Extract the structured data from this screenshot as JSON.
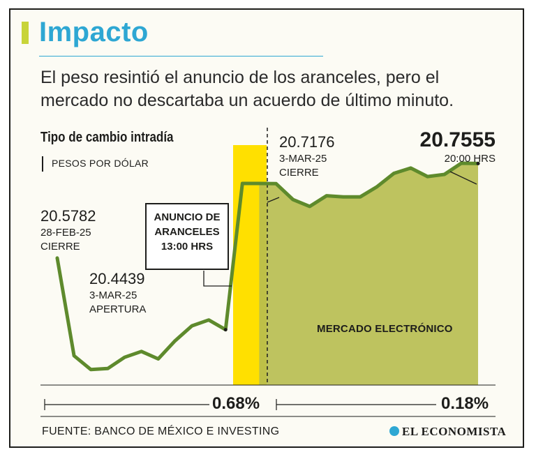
{
  "header": {
    "title": "Impacto",
    "subtitle": "El peso resintió el anuncio de los aranceles, pero el mercado no descartaba un acuerdo de último minuto."
  },
  "chart_title": "Tipo de cambio intradía",
  "chart_unit": "PESOS POR DÓLAR",
  "labels": {
    "close_feb_value": "20.5782",
    "close_feb_date": "28-FEB-25",
    "close_feb_tag": "CIERRE",
    "open_value": "20.4439",
    "open_date": "3-MAR-25",
    "open_tag": "APERTURA",
    "announce_line1": "ANUNCIO DE",
    "announce_line2": "ARANCELES",
    "announce_line3": "13:00 HRS",
    "close_mar_value": "20.7176",
    "close_mar_date": "3-MAR-25",
    "close_mar_tag": "CIERRE",
    "last_value": "20.7555",
    "last_time": "20:00 HRS",
    "electronic_market": "MERCADO ELECTRÓNICO"
  },
  "changes": {
    "regular_session": "0.68%",
    "electronic_session": "0.18%"
  },
  "footer": {
    "source": "FUENTE: BANCO DE MÉXICO E INVESTING",
    "brand": "EL ECONOMISTA"
  },
  "colors": {
    "accent": "#2ea7d3",
    "line": "#5e8a2c",
    "area_fill": "#b7bd4f",
    "highlight": "#ffe000"
  },
  "chart_data": {
    "type": "line",
    "series": [
      {
        "name": "",
        "values": [
          20.5782,
          20.395,
          20.369,
          20.371,
          20.392,
          20.403,
          20.389,
          20.423,
          20.451,
          20.462,
          20.4439,
          20.718,
          20.718,
          20.7176,
          20.688,
          20.675,
          20.695,
          20.693,
          20.693,
          20.712,
          20.737,
          20.747,
          20.731,
          20.735,
          20.756,
          20.7555
        ]
      }
    ],
    "regular_session_points": 13,
    "highlight_band": "13:00 HRS",
    "ylim": [
      20.34,
      20.79
    ]
  }
}
